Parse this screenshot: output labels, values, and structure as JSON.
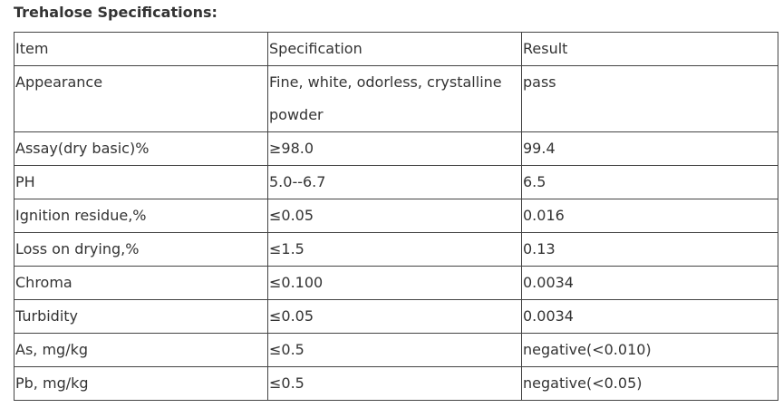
{
  "title": "Trehalose Specifications:",
  "table": {
    "header": [
      "Item",
      "Specification",
      "Result"
    ],
    "rows": [
      [
        "Appearance",
        "Fine, white, odorless, crystalline powder",
        "pass"
      ],
      [
        "Assay(dry basic)%",
        "≥98.0",
        "99.4"
      ],
      [
        "PH",
        "5.0--6.7",
        "6.5"
      ],
      [
        "Ignition residue,%",
        "≤0.05",
        "0.016"
      ],
      [
        "Loss on drying,%",
        "≤1.5",
        "0.13"
      ],
      [
        "Chroma",
        "≤0.100",
        "0.0034"
      ],
      [
        "Turbidity",
        "≤0.05",
        "0.0034"
      ],
      [
        "As, mg/kg",
        "≤0.5",
        "negative(<0.010)"
      ],
      [
        "Pb, mg/kg",
        "≤0.5",
        "negative(<0.05)"
      ]
    ]
  }
}
